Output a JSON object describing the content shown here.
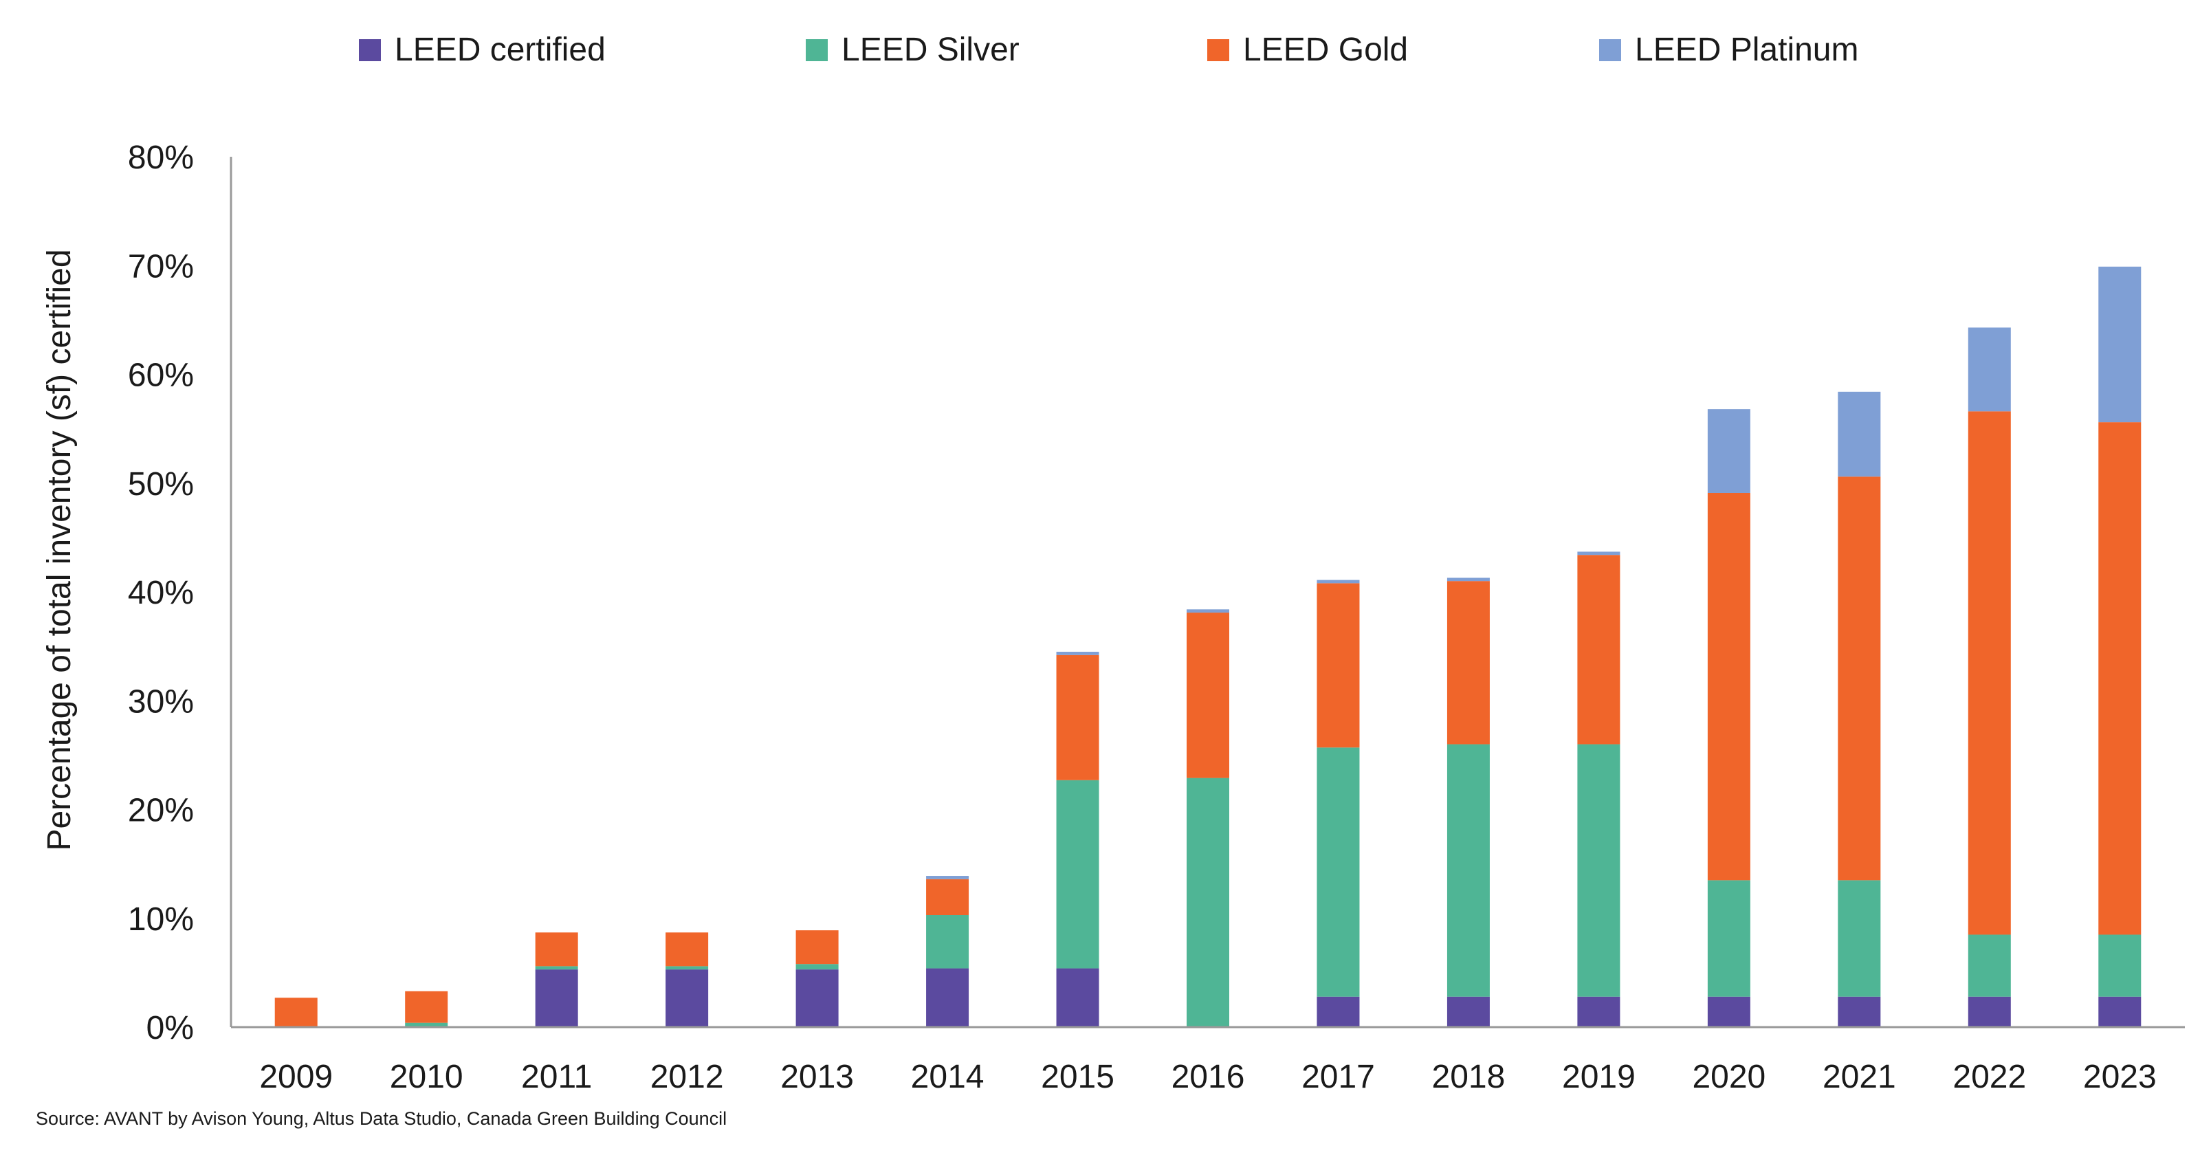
{
  "chart_data": {
    "type": "bar",
    "stacked": true,
    "title": "",
    "xlabel": "",
    "ylabel": "Percentage of total inventory (sf) certified",
    "ylim": [
      0,
      80
    ],
    "yticks": [
      0,
      10,
      20,
      30,
      40,
      50,
      60,
      70,
      80
    ],
    "ytick_labels": [
      "0%",
      "10%",
      "20%",
      "30%",
      "40%",
      "50%",
      "60%",
      "70%",
      "80%"
    ],
    "grid": false,
    "legend_position": "top",
    "categories": [
      "2009",
      "2010",
      "2011",
      "2012",
      "2013",
      "2014",
      "2015",
      "2016",
      "2017",
      "2018",
      "2019",
      "2020",
      "2021",
      "2022",
      "2023"
    ],
    "series": [
      {
        "name": "LEED certified",
        "color": "#5b4a9f",
        "values": [
          0,
          0,
          5.3,
          5.3,
          5.3,
          5.4,
          5.4,
          0,
          2.8,
          2.8,
          2.8,
          2.8,
          2.8,
          2.8,
          2.8
        ]
      },
      {
        "name": "LEED Silver",
        "color": "#4fb595",
        "values": [
          0,
          0.4,
          0.3,
          0.3,
          0.5,
          4.9,
          17.3,
          22.9,
          22.9,
          23.2,
          23.2,
          10.7,
          10.7,
          5.7,
          5.7
        ]
      },
      {
        "name": "LEED Gold",
        "color": "#f0652a",
        "values": [
          2.7,
          2.9,
          3.1,
          3.1,
          3.1,
          3.3,
          11.5,
          15.2,
          15.1,
          15.0,
          17.4,
          35.6,
          37.1,
          48.1,
          47.1
        ]
      },
      {
        "name": "LEED Platinum",
        "color": "#7f9fd5",
        "values": [
          0,
          0,
          0,
          0,
          0,
          0.3,
          0.3,
          0.3,
          0.3,
          0.3,
          0.3,
          7.7,
          7.8,
          7.7,
          14.3
        ]
      }
    ]
  },
  "source_note": "Source: AVANT by Avison Young, Altus Data Studio, Canada Green Building Council"
}
